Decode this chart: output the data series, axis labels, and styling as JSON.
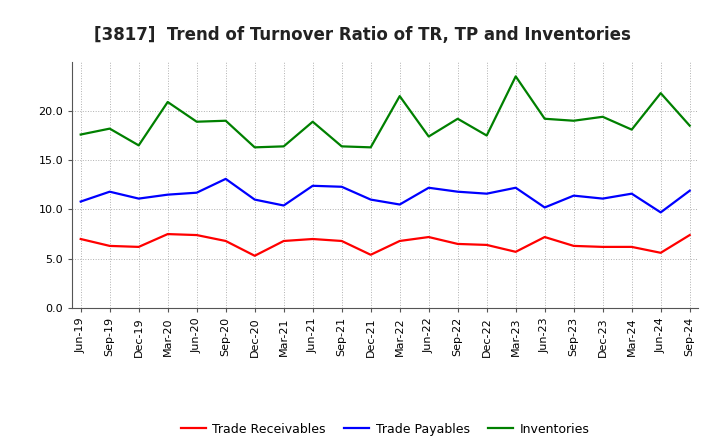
{
  "title": "[3817]  Trend of Turnover Ratio of TR, TP and Inventories",
  "xlabels": [
    "Jun-19",
    "Sep-19",
    "Dec-19",
    "Mar-20",
    "Jun-20",
    "Sep-20",
    "Dec-20",
    "Mar-21",
    "Jun-21",
    "Sep-21",
    "Dec-21",
    "Mar-22",
    "Jun-22",
    "Sep-22",
    "Dec-22",
    "Mar-23",
    "Jun-23",
    "Sep-23",
    "Dec-23",
    "Mar-24",
    "Jun-24",
    "Sep-24"
  ],
  "trade_receivables": [
    7.0,
    6.3,
    6.2,
    7.5,
    7.4,
    6.8,
    5.3,
    6.8,
    7.0,
    6.8,
    5.4,
    6.8,
    7.2,
    6.5,
    6.4,
    5.7,
    7.2,
    6.3,
    6.2,
    6.2,
    5.6,
    7.4
  ],
  "trade_payables": [
    10.8,
    11.8,
    11.1,
    11.5,
    11.7,
    13.1,
    11.0,
    10.4,
    12.4,
    12.3,
    11.0,
    10.5,
    12.2,
    11.8,
    11.6,
    12.2,
    10.2,
    11.4,
    11.1,
    11.6,
    9.7,
    11.9
  ],
  "inventories": [
    17.6,
    18.2,
    16.5,
    20.9,
    18.9,
    19.0,
    16.3,
    16.4,
    18.9,
    16.4,
    16.3,
    21.5,
    17.4,
    19.2,
    17.5,
    23.5,
    19.2,
    19.0,
    19.4,
    18.1,
    21.8,
    18.5
  ],
  "tr_color": "#ff0000",
  "tp_color": "#0000ff",
  "inv_color": "#008000",
  "ylim": [
    0,
    25
  ],
  "yticks": [
    0.0,
    5.0,
    10.0,
    15.0,
    20.0
  ],
  "background_color": "#ffffff",
  "grid_color": "#b0b0b0",
  "legend_labels": [
    "Trade Receivables",
    "Trade Payables",
    "Inventories"
  ],
  "title_fontsize": 12,
  "tick_fontsize": 8,
  "legend_fontsize": 9
}
